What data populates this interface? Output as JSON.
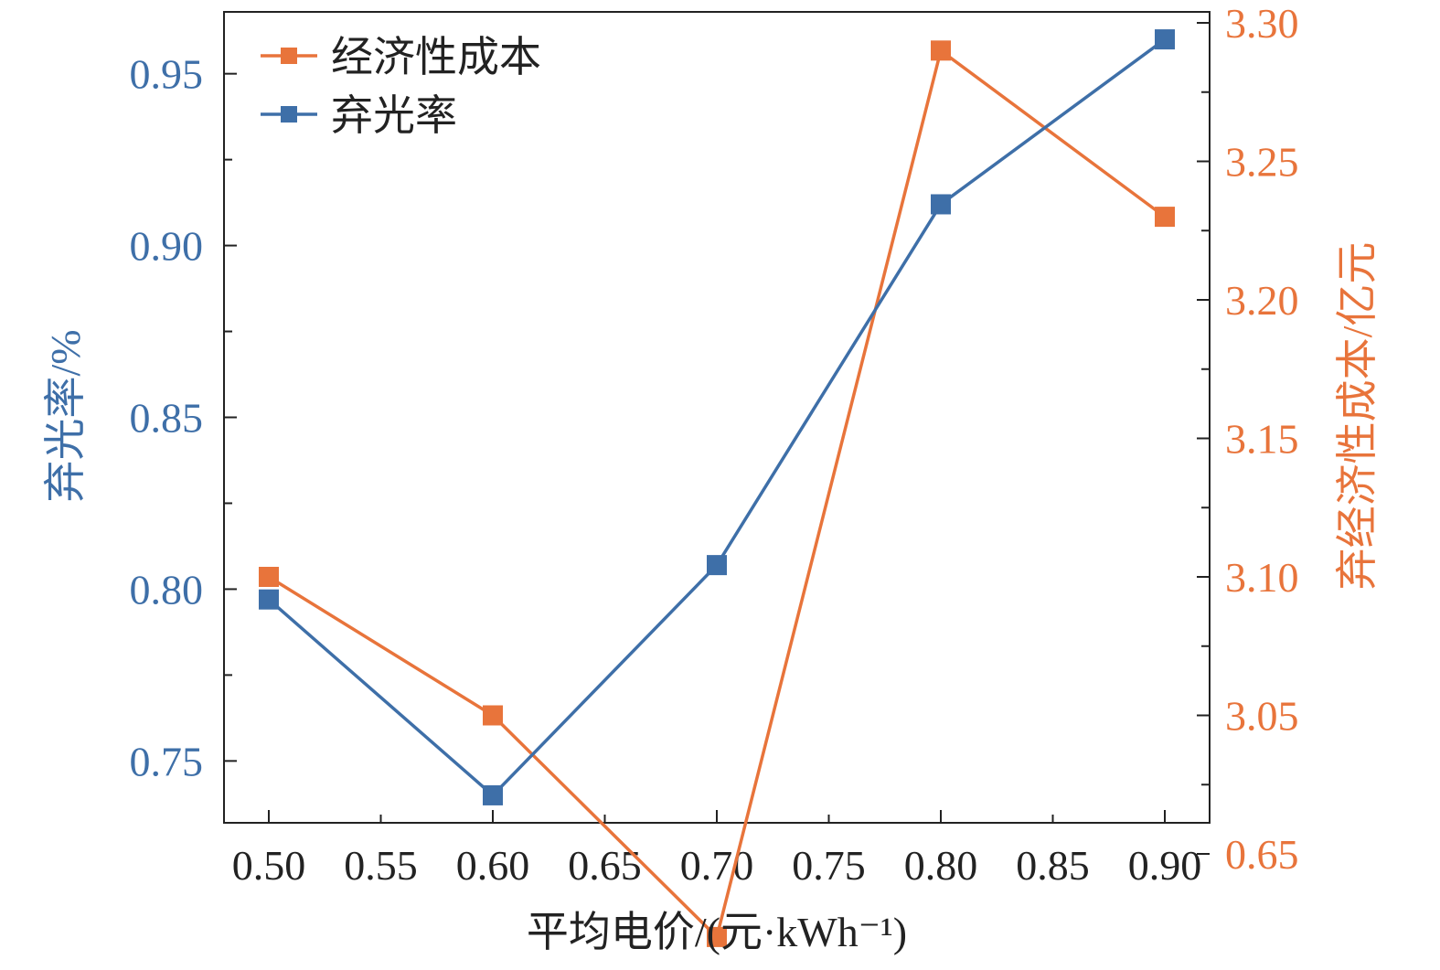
{
  "colors": {
    "left_axis": "#3E6FA8",
    "right_axis": "#E8743B",
    "axis": "#222222"
  },
  "chart_data": {
    "type": "line",
    "xlabel": "平均电价/(元·kWh⁻¹)",
    "ylabel_left": "弃光率/%",
    "ylabel_right": "弃经济性成本/亿元",
    "x_ticks": [
      "0.50",
      "0.55",
      "0.60",
      "0.65",
      "0.70",
      "0.75",
      "0.80",
      "0.85",
      "0.90"
    ],
    "x": [
      0.5,
      0.6,
      0.7,
      0.8,
      0.9
    ],
    "xlim": [
      0.48,
      0.92
    ],
    "y_left_ticks": [
      "0.75",
      "0.80",
      "0.85",
      "0.90",
      "0.95"
    ],
    "y_left_lim": [
      0.732,
      0.968
    ],
    "y_right_ticks": [
      "0.65",
      "3.05",
      "3.10",
      "3.15",
      "3.20",
      "3.25",
      "3.30"
    ],
    "legend_position": "top-left",
    "grid": false,
    "series": [
      {
        "name": "经济性成本",
        "axis": "right",
        "color": "#E8743B",
        "marker": "square",
        "values": [
          3.1,
          3.05,
          0.62,
          3.29,
          3.23
        ]
      },
      {
        "name": "弃光率",
        "axis": "left",
        "color": "#3E6FA8",
        "marker": "square",
        "values": [
          0.797,
          0.74,
          0.807,
          0.912,
          0.96
        ]
      }
    ]
  }
}
